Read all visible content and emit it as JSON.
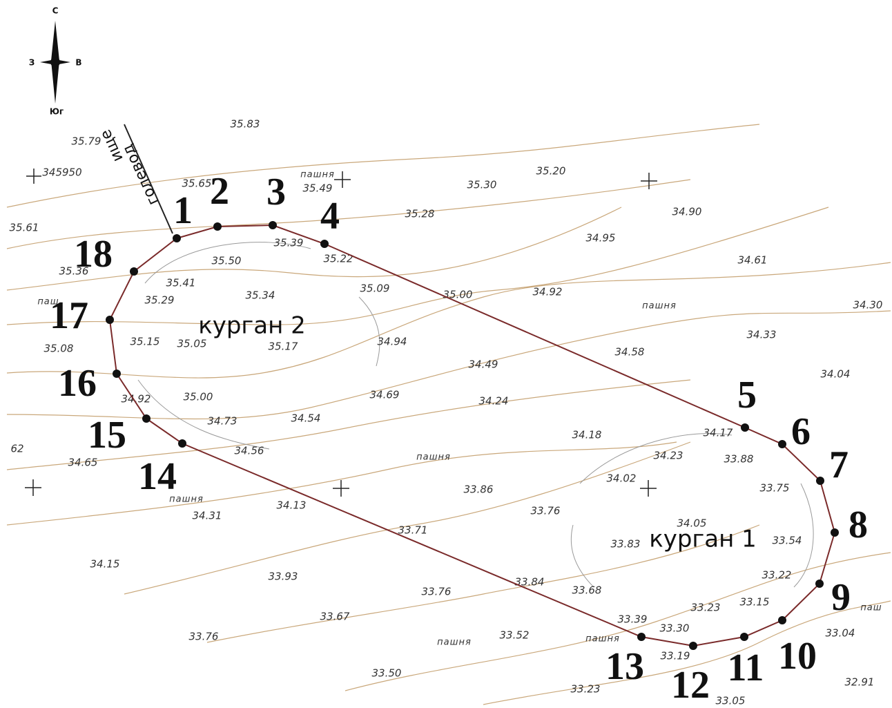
{
  "compass": {
    "north": "С",
    "west": "З",
    "east": "В",
    "south": "Юг"
  },
  "road": [
    "голевод",
    "ище"
  ],
  "mounds": [
    "курган 2",
    "курган 1"
  ],
  "points": [
    "1",
    "2",
    "3",
    "4",
    "5",
    "6",
    "7",
    "8",
    "9",
    "10",
    "11",
    "12",
    "13",
    "14",
    "15",
    "16",
    "17",
    "18"
  ],
  "arable": [
    "пашня",
    "пашня",
    "пашня",
    "пашня",
    "пашня",
    "пашня",
    "паш",
    "паш"
  ],
  "elevations": [
    "35.79",
    "345950",
    "35.65",
    "35.49",
    "35.30",
    "35.20",
    "34.90",
    "35.28",
    "35.61",
    "35.39",
    "35.50",
    "35.22",
    "34.95",
    "34.61",
    "35.41",
    "35.34",
    "35.09",
    "35.00",
    "34.92",
    "34.30",
    "35.29",
    "35.36",
    "34.33",
    "35.15",
    "35.05",
    "35.17",
    "34.94",
    "34.58",
    "35.08",
    "34.04",
    "34.49",
    "34.69",
    "34.24",
    "35.00",
    "34.92",
    "34.73",
    "34.54",
    "34.18",
    "34.17",
    "34.56",
    "34.23",
    "33.88",
    "62",
    "34.65",
    "34.02",
    "33.75",
    "33.86",
    "34.13",
    "33.76",
    "34.31",
    "34.05",
    "33.71",
    "33.83",
    "33.54",
    "34.15",
    "33.93",
    "33.22",
    "33.84",
    "33.68",
    "33.76",
    "33.23",
    "33.15",
    "33.67",
    "33.39",
    "33.30",
    "33.76",
    "33.52",
    "33.04",
    "33.19",
    "33.50",
    "32.91",
    "33.23",
    "33.05",
    "35.83"
  ]
}
